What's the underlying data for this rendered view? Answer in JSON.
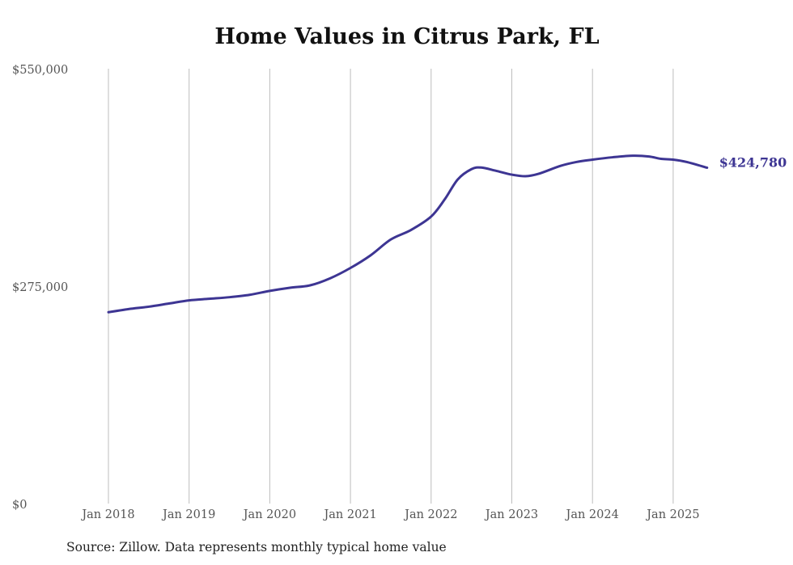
{
  "chart_data": {
    "type": "line",
    "title": "Home Values in Citrus Park, FL",
    "xlabel": "",
    "ylabel": "",
    "ylim": [
      0,
      550000
    ],
    "y_ticks": [
      {
        "value": 0,
        "label": "$0"
      },
      {
        "value": 275000,
        "label": "$275,000"
      },
      {
        "value": 550000,
        "label": "$550,000"
      }
    ],
    "x_ticks": [
      {
        "value": 2018,
        "label": "Jan 2018"
      },
      {
        "value": 2019,
        "label": "Jan 2019"
      },
      {
        "value": 2020,
        "label": "Jan 2020"
      },
      {
        "value": 2021,
        "label": "Jan 2021"
      },
      {
        "value": 2022,
        "label": "Jan 2022"
      },
      {
        "value": 2023,
        "label": "Jan 2023"
      },
      {
        "value": 2024,
        "label": "Jan 2024"
      },
      {
        "value": 2025,
        "label": "Jan 2025"
      }
    ],
    "grid": "vertical",
    "series": [
      {
        "name": "Typical home value",
        "color": "#3d3593",
        "end_label": "$424,780",
        "points": [
          [
            2018.0,
            242000
          ],
          [
            2018.25,
            246000
          ],
          [
            2018.5,
            249000
          ],
          [
            2018.75,
            253000
          ],
          [
            2019.0,
            257000
          ],
          [
            2019.25,
            259000
          ],
          [
            2019.5,
            261000
          ],
          [
            2019.75,
            264000
          ],
          [
            2020.0,
            269000
          ],
          [
            2020.25,
            273000
          ],
          [
            2020.5,
            276000
          ],
          [
            2020.75,
            285000
          ],
          [
            2021.0,
            298000
          ],
          [
            2021.25,
            314000
          ],
          [
            2021.5,
            334000
          ],
          [
            2021.75,
            346000
          ],
          [
            2022.0,
            363000
          ],
          [
            2022.17,
            385000
          ],
          [
            2022.33,
            410000
          ],
          [
            2022.5,
            423000
          ],
          [
            2022.62,
            425000
          ],
          [
            2022.8,
            421000
          ],
          [
            2023.0,
            416000
          ],
          [
            2023.17,
            414000
          ],
          [
            2023.33,
            417000
          ],
          [
            2023.6,
            427000
          ],
          [
            2023.8,
            432000
          ],
          [
            2024.0,
            435000
          ],
          [
            2024.25,
            438000
          ],
          [
            2024.5,
            440000
          ],
          [
            2024.7,
            439000
          ],
          [
            2024.85,
            436000
          ],
          [
            2025.0,
            435000
          ],
          [
            2025.17,
            432000
          ],
          [
            2025.42,
            424780
          ]
        ]
      }
    ]
  },
  "footer": {
    "source": "Source: Zillow. Data represents monthly typical home value"
  }
}
